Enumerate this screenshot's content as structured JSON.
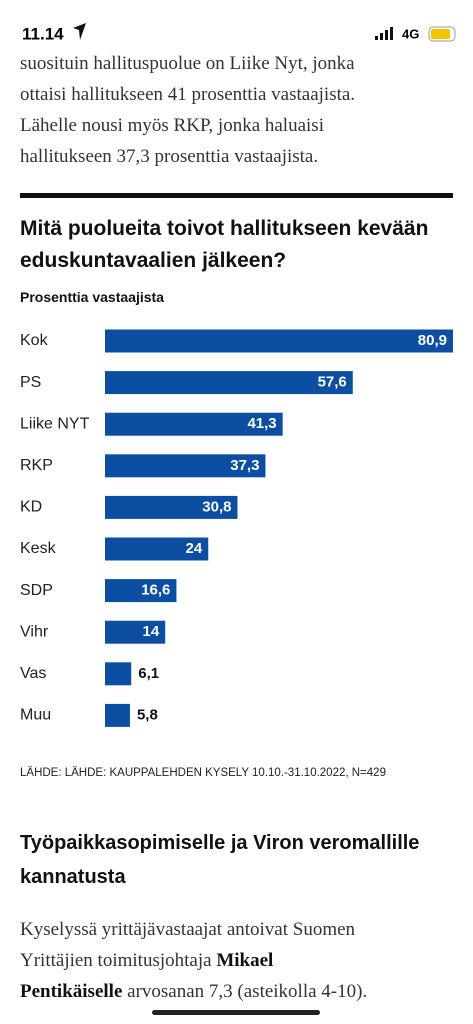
{
  "status_bar": {
    "time": "11.14",
    "network": "4G"
  },
  "intro_lines": [
    "suosituin hallituspuolue on Liike Nyt, jonka",
    "ottaisi hallitukseen 41 prosenttia vastaajista.",
    "Lähelle nousi myös RKP, jonka haluaisi",
    "hallitukseen 37,3 prosenttia vastaajista."
  ],
  "chart_data": {
    "type": "bar",
    "orientation": "horizontal",
    "title": "Mitä puolueita toivot hallitukseen kevään eduskuntavaalien jälkeen?",
    "subtitle": "Prosenttia vastaajista",
    "categories": [
      "Kok",
      "PS",
      "Liike NYT",
      "RKP",
      "KD",
      "Kesk",
      "SDP",
      "Vihr",
      "Vas",
      "Muu"
    ],
    "values": [
      80.9,
      57.6,
      41.3,
      37.3,
      30.8,
      24,
      16.6,
      14,
      6.1,
      5.8
    ],
    "value_labels": [
      "80,9",
      "57,6",
      "41,3",
      "37,3",
      "30,8",
      "24",
      "16,6",
      "14",
      "6,1",
      "5,8"
    ],
    "color": "#0b4ea2",
    "source": "LÄHDE: LÄHDE: KAUPPALEHDEN KYSELY 10.10.-31.10.2022, N=429"
  },
  "section_heading": "Työpaikkasopimiselle ja Viron veromallille kannatusta",
  "body_lines": [
    [
      {
        "text": "Kyselyssä yrittäjävastaajat antoivat Suomen",
        "bold": false
      }
    ],
    [
      {
        "text": "Yrittäjien toimitusjohtaja ",
        "bold": false
      },
      {
        "text": "Mikael",
        "bold": true
      }
    ],
    [
      {
        "text": "Pentikäiselle",
        "bold": true
      },
      {
        "text": " arvosanan 7,3 (asteikolla 4-10).",
        "bold": false
      }
    ]
  ]
}
